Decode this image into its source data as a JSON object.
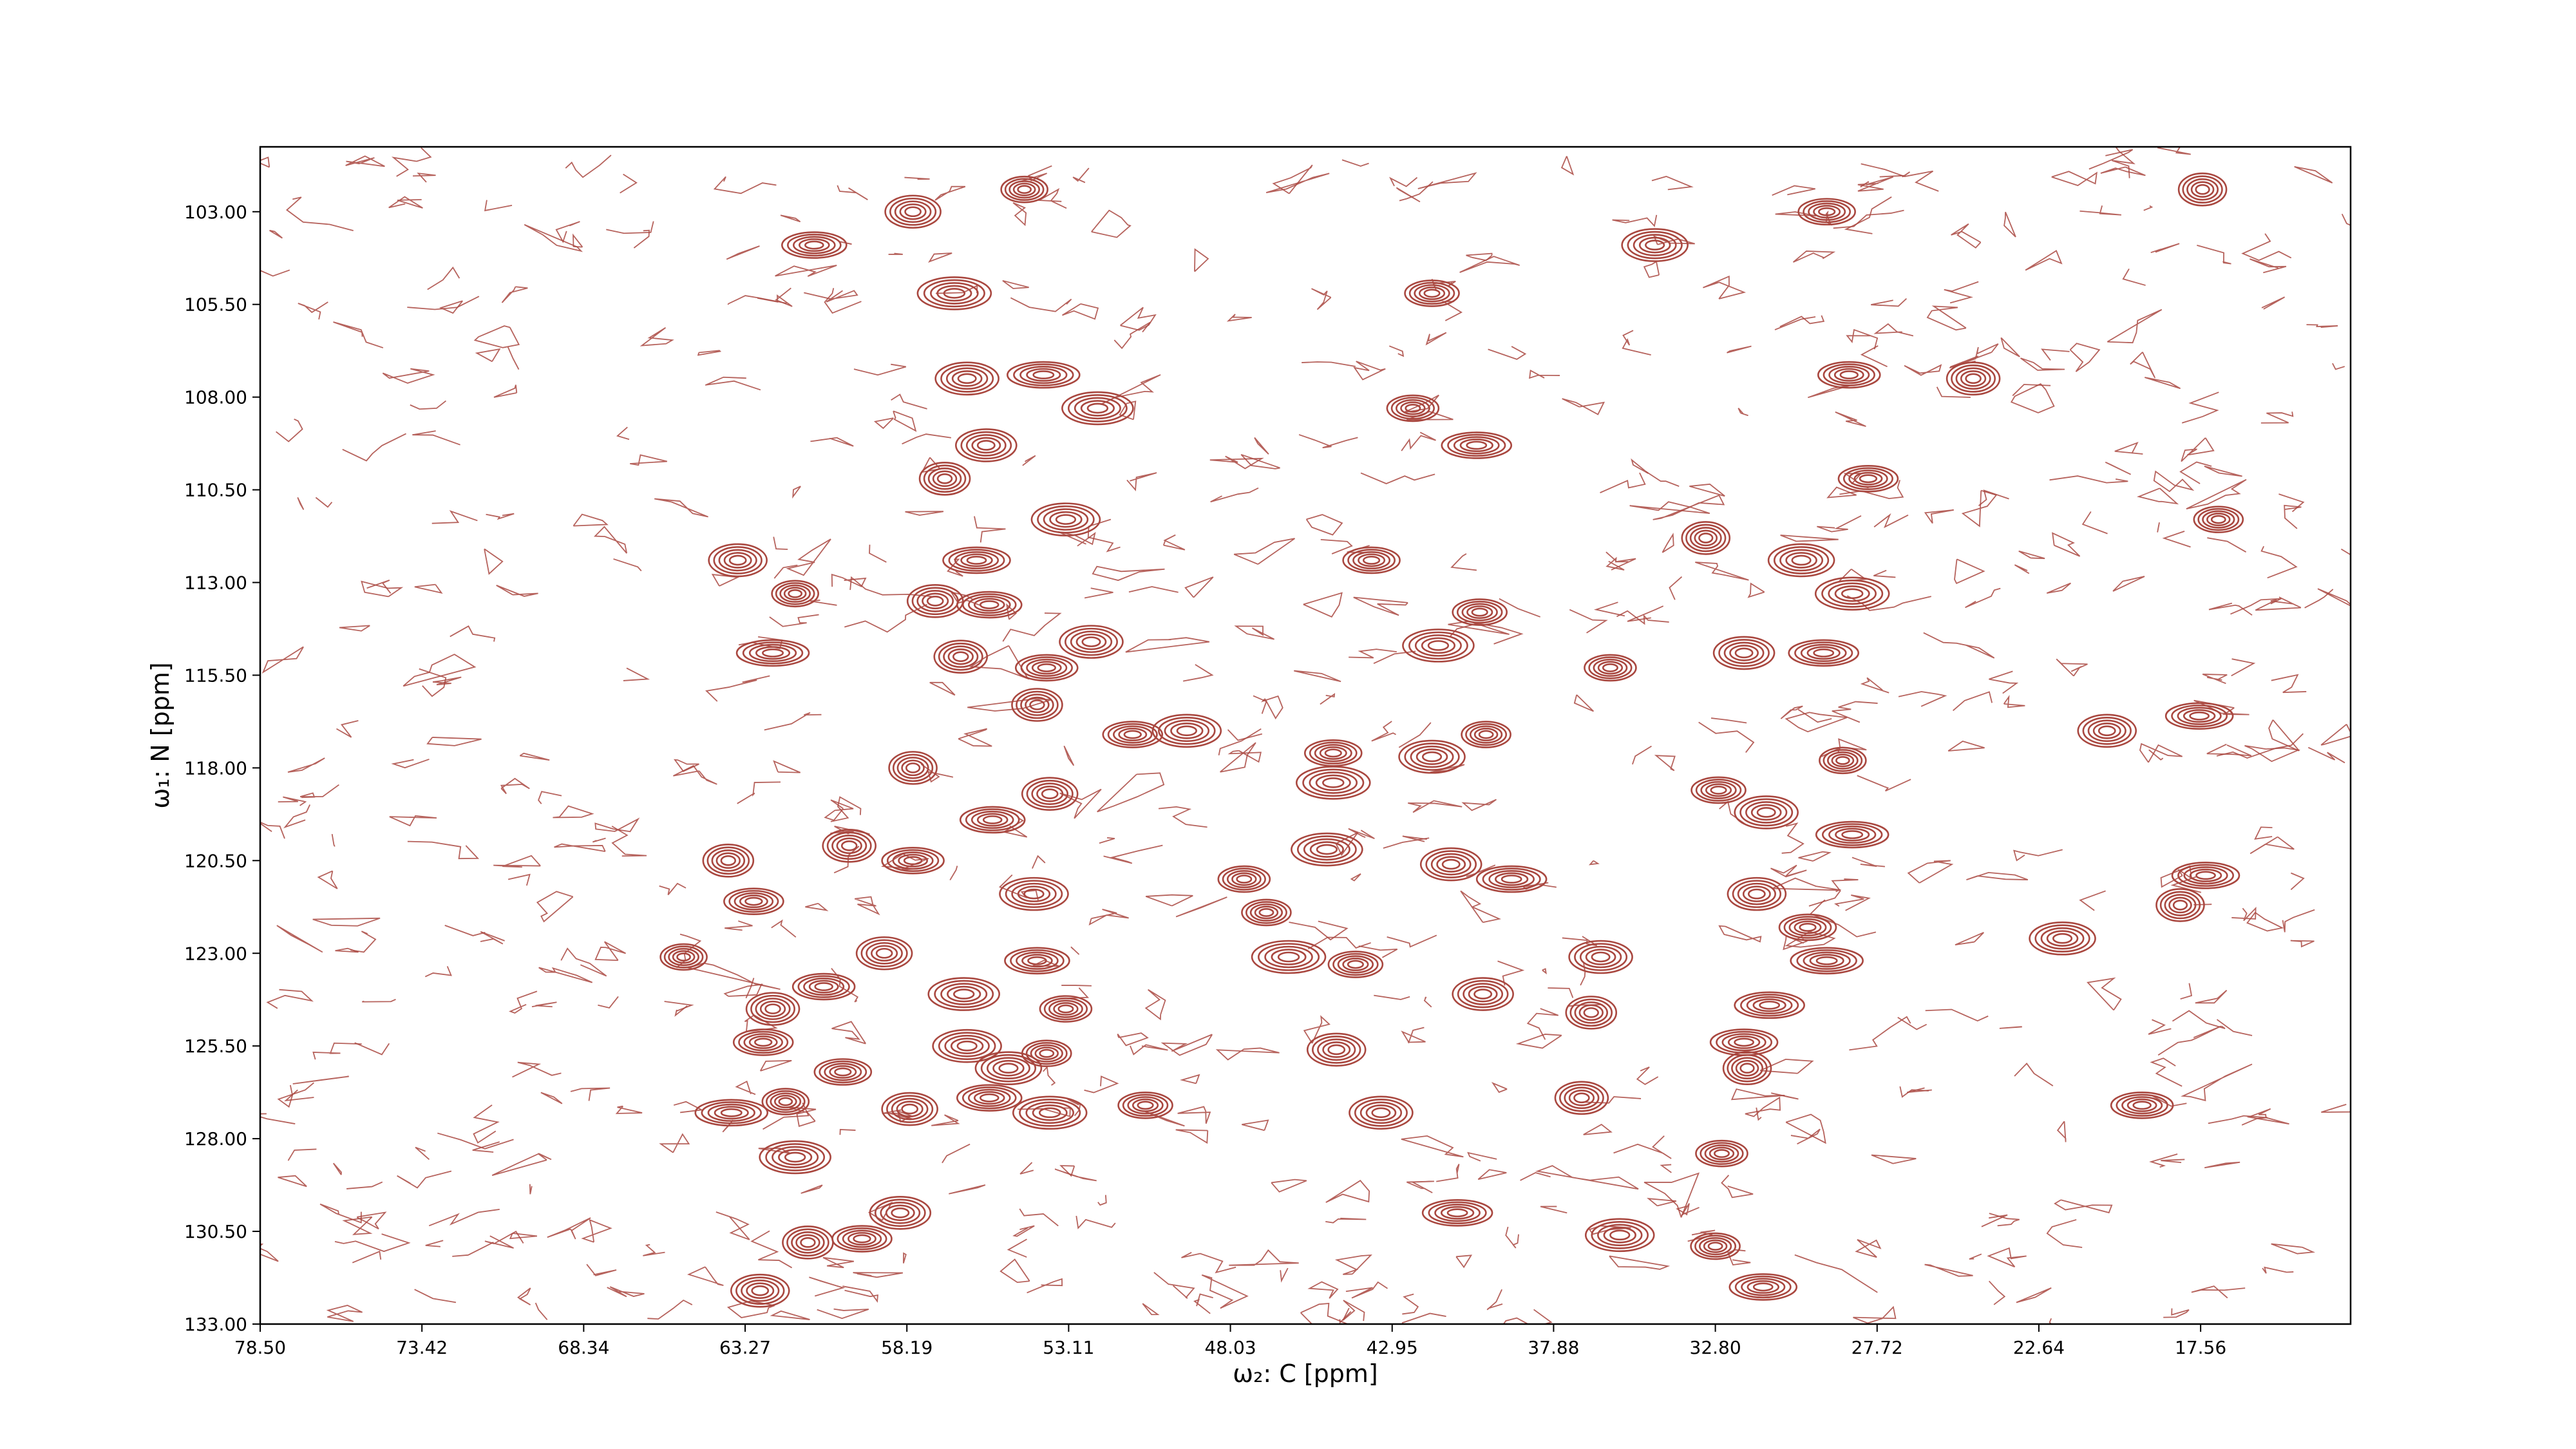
{
  "chart_data": {
    "type": "contour",
    "x_label": "ω₂: C [ppm]",
    "y_label": "ω₁: N [ppm]",
    "xlim": [
      78.5,
      12.85
    ],
    "ylim": [
      133,
      101.25
    ],
    "xticks": [
      {
        "value": 78.5,
        "label": "78.50"
      },
      73.42,
      68.34,
      63.27,
      58.19,
      53.11,
      48.03,
      42.95,
      37.88,
      {
        "value": 32.8,
        "label": "32.80"
      },
      27.72,
      22.64,
      17.56
    ],
    "yticks": [
      {
        "value": 103,
        "label": "103.00"
      },
      {
        "value": 105.5,
        "label": "105.50"
      },
      {
        "value": 108,
        "label": "108.00"
      },
      {
        "value": 110.5,
        "label": "110.50"
      },
      {
        "value": 113,
        "label": "113.00"
      },
      {
        "value": 115.5,
        "label": "115.50"
      },
      {
        "value": 118,
        "label": "118.00"
      },
      {
        "value": 120.5,
        "label": "120.50"
      },
      {
        "value": 123,
        "label": "123.00"
      },
      {
        "value": 125.5,
        "label": "125.50"
      },
      {
        "value": 128,
        "label": "128.00"
      },
      {
        "value": 130.5,
        "label": "130.50"
      },
      {
        "value": 133,
        "label": "133.00"
      }
    ],
    "color": "#a9473f",
    "x": [
      54.5,
      58.0,
      61.1,
      56.7,
      41.7,
      56.3,
      53.9,
      24.7,
      28.6,
      52.2,
      42.3,
      55.7,
      40.3,
      57.0,
      28.0,
      53.2,
      17.0,
      63.5,
      56.0,
      33.1,
      43.6,
      30.1,
      61.7,
      57.3,
      55.6,
      28.5,
      40.2,
      52.4,
      62.4,
      56.5,
      53.8,
      41.5,
      36.1,
      31.9,
      29.4,
      54.1,
      51.1,
      49.4,
      40.0,
      20.5,
      17.6,
      58.0,
      44.8,
      41.7,
      28.8,
      53.7,
      55.5,
      44.8,
      32.7,
      31.2,
      28.5,
      60.0,
      58.0,
      45.0,
      47.6,
      41.1,
      39.2,
      63.8,
      63.0,
      54.2,
      46.9,
      31.5,
      17.4,
      18.2,
      29.9,
      21.9,
      65.2,
      58.9,
      54.1,
      46.2,
      44.1,
      36.4,
      29.3,
      62.4,
      60.8,
      56.4,
      53.2,
      40.1,
      31.1,
      36.7,
      62.7,
      56.3,
      53.8,
      44.7,
      31.9,
      31.8,
      60.2,
      55.0,
      62.0,
      58.1,
      55.6,
      53.7,
      50.7,
      43.3,
      63.7,
      37.0,
      19.4,
      61.7,
      32.6,
      58.4,
      40.9,
      61.3,
      59.6,
      35.8,
      32.8,
      62.8,
      31.3,
      17.5,
      29.3,
      34.7
    ],
    "values": [
      102.4,
      103.0,
      103.9,
      105.2,
      105.2,
      107.5,
      107.4,
      107.5,
      107.4,
      108.3,
      108.3,
      109.3,
      109.3,
      110.2,
      110.2,
      111.3,
      111.3,
      112.4,
      112.4,
      111.8,
      112.4,
      112.4,
      113.3,
      113.5,
      113.6,
      113.3,
      113.8,
      114.6,
      114.9,
      115.0,
      115.3,
      114.7,
      115.3,
      114.9,
      114.9,
      116.3,
      117.1,
      117.0,
      117.1,
      117.0,
      116.6,
      118.0,
      117.6,
      117.7,
      117.8,
      118.7,
      119.4,
      118.4,
      118.6,
      119.2,
      119.8,
      120.1,
      120.5,
      120.2,
      121.0,
      120.6,
      121.0,
      120.5,
      121.6,
      121.4,
      121.9,
      121.4,
      120.9,
      121.7,
      122.3,
      122.6,
      123.1,
      123.0,
      123.2,
      123.1,
      123.3,
      123.1,
      123.2,
      124.5,
      123.9,
      124.1,
      124.5,
      124.1,
      124.4,
      124.6,
      125.4,
      125.5,
      125.7,
      125.6,
      125.4,
      126.1,
      126.2,
      126.1,
      127.0,
      127.2,
      126.9,
      127.3,
      127.1,
      127.3,
      127.3,
      126.9,
      127.1,
      128.5,
      128.4,
      130.0,
      130.0,
      130.8,
      130.7,
      130.6,
      130.9,
      132.1,
      132.0,
      102.4,
      103.0,
      103.9
    ]
  }
}
